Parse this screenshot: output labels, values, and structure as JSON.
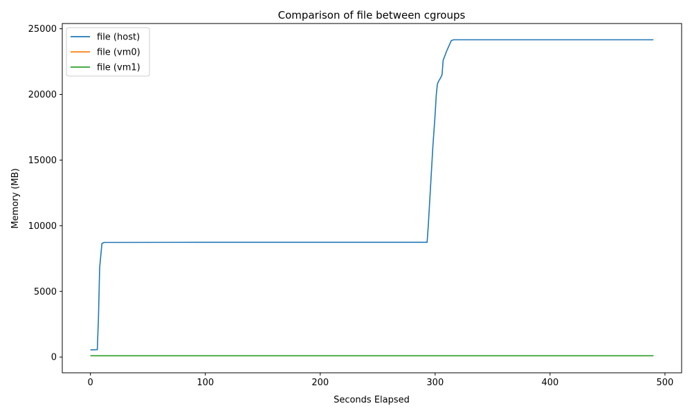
{
  "chart_data": {
    "type": "line",
    "title": "Comparison of file between cgroups",
    "xlabel": "Seconds Elapsed",
    "ylabel": "Memory (MB)",
    "xlim": [
      -24.5,
      514.5
    ],
    "ylim": [
      -1200,
      25400
    ],
    "xticks": [
      0,
      100,
      200,
      300,
      400,
      500
    ],
    "yticks": [
      0,
      5000,
      10000,
      15000,
      20000,
      25000
    ],
    "grid": false,
    "legend_position": "upper-left",
    "series": [
      {
        "name": "file (host)",
        "color": "#1f77b4",
        "points": [
          [
            0,
            550
          ],
          [
            6,
            560
          ],
          [
            7,
            3000
          ],
          [
            8,
            6800
          ],
          [
            10,
            8650
          ],
          [
            12,
            8730
          ],
          [
            20,
            8730
          ],
          [
            100,
            8740
          ],
          [
            200,
            8740
          ],
          [
            293,
            8740
          ],
          [
            294,
            10000
          ],
          [
            296,
            13000
          ],
          [
            298,
            16000
          ],
          [
            300,
            18500
          ],
          [
            301,
            20000
          ],
          [
            302,
            20800
          ],
          [
            303,
            21000
          ],
          [
            305,
            21300
          ],
          [
            306,
            21500
          ],
          [
            307,
            22600
          ],
          [
            310,
            23300
          ],
          [
            312,
            23700
          ],
          [
            314,
            24100
          ],
          [
            316,
            24160
          ],
          [
            350,
            24160
          ],
          [
            400,
            24160
          ],
          [
            490,
            24160
          ]
        ]
      },
      {
        "name": "file (vm0)",
        "color": "#ff7f0e",
        "points": [
          [
            0,
            100
          ],
          [
            490,
            100
          ]
        ]
      },
      {
        "name": "file (vm1)",
        "color": "#2ca02c",
        "points": [
          [
            0,
            100
          ],
          [
            490,
            100
          ]
        ]
      }
    ]
  }
}
